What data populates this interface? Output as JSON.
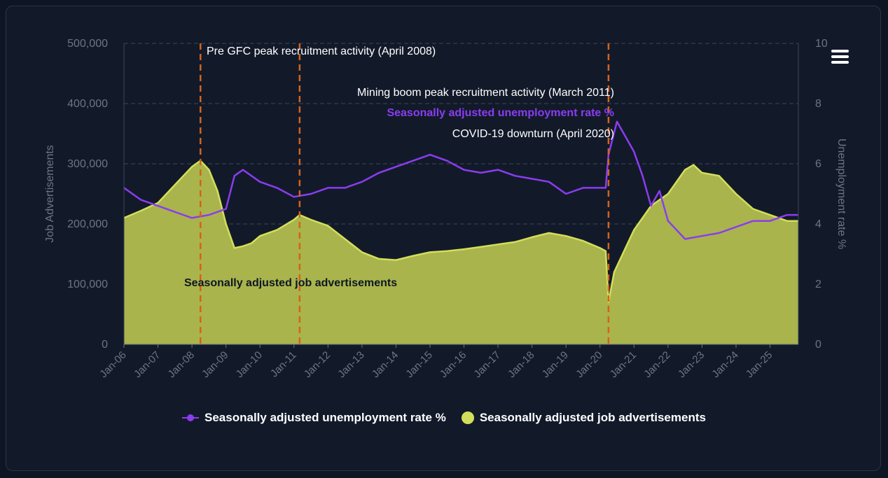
{
  "menu": {
    "icon": "hamburger-menu-icon"
  },
  "legend": {
    "unemployment_label": "Seasonally adjusted unemployment rate %",
    "jobads_label": "Seasonally adjusted job advertisements"
  },
  "chart_data": {
    "type": "line",
    "x_tick_labels": [
      "Jan-06",
      "Jan-07",
      "Jan-08",
      "Jan-09",
      "Jan-10",
      "Jan-11",
      "Jan-12",
      "Jan-13",
      "Jan-14",
      "Jan-15",
      "Jan-16",
      "Jan-17",
      "Jan-18",
      "Jan-19",
      "Jan-20",
      "Jan-21",
      "Jan-22",
      "Jan-23",
      "Jan-24",
      "Jan-25"
    ],
    "x_range": [
      "Jan-06",
      "Nov-25"
    ],
    "y_left": {
      "label": "Job Advertisements",
      "range": [
        0,
        500000
      ],
      "ticks": [
        0,
        100000,
        200000,
        300000,
        400000,
        500000
      ],
      "tick_labels": [
        "0",
        "100,000",
        "200,000",
        "300,000",
        "400,000",
        "500,000"
      ]
    },
    "y_right": {
      "label": "Unemployment rate %",
      "range": [
        0,
        10
      ],
      "ticks": [
        0,
        2,
        4,
        6,
        8,
        10
      ],
      "tick_labels": [
        "0",
        "2",
        "4",
        "6",
        "8",
        "10"
      ]
    },
    "grid": "horizontal dashed",
    "colors": {
      "jobads": "#d3df5a",
      "jobads_fill": "#a9b44c",
      "unemployment": "#8b3cf0",
      "annotation_line": "#d6621a"
    },
    "annotations": [
      {
        "label": "Pre GFC peak recruitment activity (April 2008)",
        "date": "Apr-08"
      },
      {
        "label": "Mining boom peak recruitment activity (March 2011)",
        "date": "Mar-11"
      },
      {
        "label": "COVID-19 downturn (April 2020)",
        "date": "Apr-20"
      }
    ],
    "series": [
      {
        "name": "Seasonally adjusted job advertisements",
        "type": "area",
        "axis": "left",
        "points": [
          [
            "Jan-06",
            210000
          ],
          [
            "Jul-06",
            222000
          ],
          [
            "Jan-07",
            235000
          ],
          [
            "Jul-07",
            265000
          ],
          [
            "Jan-08",
            295000
          ],
          [
            "Apr-08",
            305000
          ],
          [
            "Jul-08",
            290000
          ],
          [
            "Oct-08",
            255000
          ],
          [
            "Jan-09",
            200000
          ],
          [
            "Apr-09",
            160000
          ],
          [
            "Jul-09",
            163000
          ],
          [
            "Oct-09",
            168000
          ],
          [
            "Jan-10",
            180000
          ],
          [
            "Jul-10",
            190000
          ],
          [
            "Jan-11",
            207000
          ],
          [
            "Mar-11",
            215000
          ],
          [
            "Jul-11",
            207000
          ],
          [
            "Jan-12",
            197000
          ],
          [
            "Jul-12",
            175000
          ],
          [
            "Jan-13",
            153000
          ],
          [
            "Jul-13",
            142000
          ],
          [
            "Jan-14",
            140000
          ],
          [
            "Jul-14",
            147000
          ],
          [
            "Jan-15",
            153000
          ],
          [
            "Jul-15",
            155000
          ],
          [
            "Jan-16",
            158000
          ],
          [
            "Jul-16",
            162000
          ],
          [
            "Jan-17",
            166000
          ],
          [
            "Jul-17",
            170000
          ],
          [
            "Jan-18",
            178000
          ],
          [
            "Jul-18",
            185000
          ],
          [
            "Jan-19",
            180000
          ],
          [
            "Jul-19",
            172000
          ],
          [
            "Jan-20",
            160000
          ],
          [
            "Mar-20",
            155000
          ],
          [
            "Apr-20",
            70000
          ],
          [
            "Jun-20",
            120000
          ],
          [
            "Sep-20",
            150000
          ],
          [
            "Jan-21",
            190000
          ],
          [
            "Jul-21",
            230000
          ],
          [
            "Jan-22",
            250000
          ],
          [
            "Jul-22",
            290000
          ],
          [
            "Oct-22",
            298000
          ],
          [
            "Jan-23",
            285000
          ],
          [
            "Jul-23",
            280000
          ],
          [
            "Jan-24",
            250000
          ],
          [
            "Jul-24",
            225000
          ],
          [
            "Jan-25",
            215000
          ],
          [
            "Jul-25",
            205000
          ],
          [
            "Nov-25",
            205000
          ]
        ]
      },
      {
        "name": "Seasonally adjusted unemployment rate %",
        "type": "line",
        "axis": "right",
        "points": [
          [
            "Jan-06",
            5.2
          ],
          [
            "Jul-06",
            4.8
          ],
          [
            "Jan-07",
            4.6
          ],
          [
            "Jul-07",
            4.4
          ],
          [
            "Jan-08",
            4.2
          ],
          [
            "Jul-08",
            4.3
          ],
          [
            "Jan-09",
            4.5
          ],
          [
            "Apr-09",
            5.6
          ],
          [
            "Jul-09",
            5.8
          ],
          [
            "Jan-10",
            5.4
          ],
          [
            "Jul-10",
            5.2
          ],
          [
            "Jan-11",
            4.9
          ],
          [
            "Jul-11",
            5.0
          ],
          [
            "Jan-12",
            5.2
          ],
          [
            "Jul-12",
            5.2
          ],
          [
            "Jan-13",
            5.4
          ],
          [
            "Jul-13",
            5.7
          ],
          [
            "Jan-14",
            5.9
          ],
          [
            "Jul-14",
            6.1
          ],
          [
            "Jan-15",
            6.3
          ],
          [
            "Jul-15",
            6.1
          ],
          [
            "Jan-16",
            5.8
          ],
          [
            "Jul-16",
            5.7
          ],
          [
            "Jan-17",
            5.8
          ],
          [
            "Jul-17",
            5.6
          ],
          [
            "Jan-18",
            5.5
          ],
          [
            "Jul-18",
            5.4
          ],
          [
            "Jan-19",
            5.0
          ],
          [
            "Jul-19",
            5.2
          ],
          [
            "Jan-20",
            5.2
          ],
          [
            "Mar-20",
            5.2
          ],
          [
            "Apr-20",
            6.3
          ],
          [
            "Jul-20",
            7.4
          ],
          [
            "Oct-20",
            6.9
          ],
          [
            "Jan-21",
            6.4
          ],
          [
            "Apr-21",
            5.6
          ],
          [
            "Jul-21",
            4.6
          ],
          [
            "Oct-21",
            5.1
          ],
          [
            "Jan-22",
            4.1
          ],
          [
            "Jul-22",
            3.5
          ],
          [
            "Jan-23",
            3.6
          ],
          [
            "Jul-23",
            3.7
          ],
          [
            "Jan-24",
            3.9
          ],
          [
            "Jul-24",
            4.1
          ],
          [
            "Jan-25",
            4.1
          ],
          [
            "Jul-25",
            4.3
          ],
          [
            "Nov-25",
            4.3
          ]
        ]
      }
    ],
    "series_labels": {
      "unemployment": "Seasonally adjusted unemployment rate %",
      "jobads": "Seasonally adjusted job advertisements"
    }
  }
}
